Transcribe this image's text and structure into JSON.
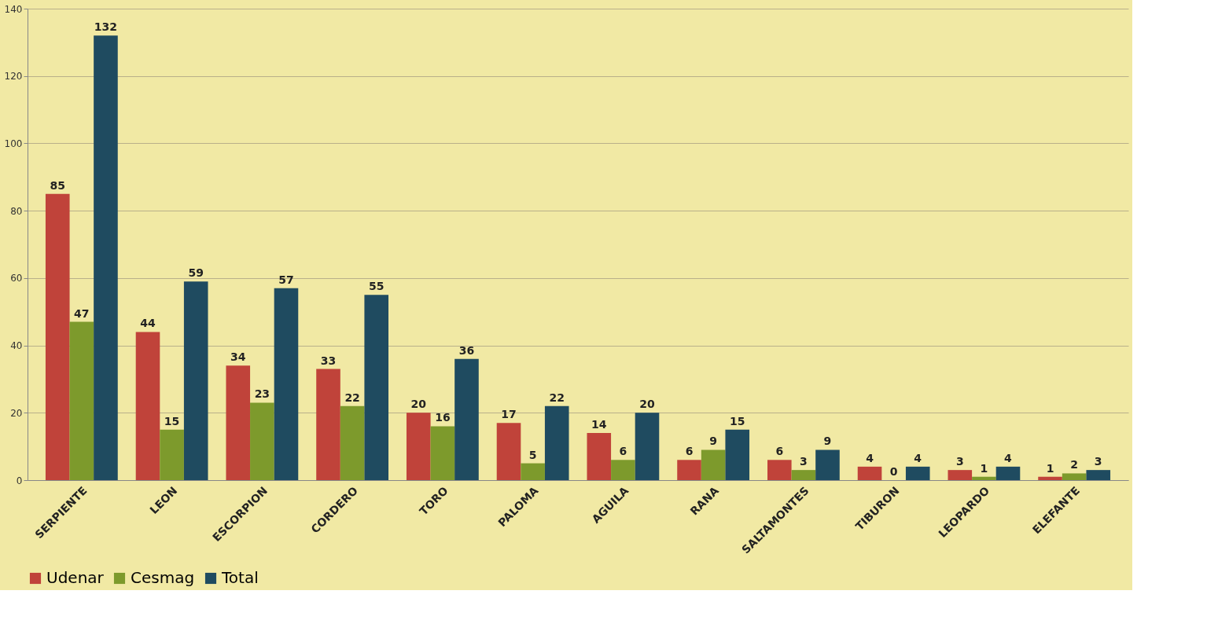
{
  "chart_data": {
    "type": "bar",
    "categories": [
      "SERPIENTE",
      "LEON",
      "ESCORPION",
      "CORDERO",
      "TORO",
      "PALOMA",
      "AGUILA",
      "RANA",
      "SALTAMONTES",
      "TIBURON",
      "LEOPARDO",
      "ELEFANTE"
    ],
    "series": [
      {
        "name": "Udenar",
        "color": "#c0433a",
        "values": [
          85,
          44,
          34,
          33,
          20,
          17,
          14,
          6,
          6,
          4,
          3,
          1
        ]
      },
      {
        "name": "Cesmag",
        "color": "#7d9a2c",
        "values": [
          47,
          15,
          23,
          22,
          16,
          5,
          6,
          9,
          3,
          0,
          1,
          2
        ]
      },
      {
        "name": "Total",
        "color": "#1f4b60",
        "values": [
          132,
          59,
          57,
          55,
          36,
          22,
          20,
          15,
          9,
          4,
          4,
          3
        ]
      }
    ],
    "ylim": [
      0,
      140
    ],
    "yticks": [
      0,
      20,
      40,
      60,
      80,
      100,
      120,
      140
    ],
    "grid": "y",
    "legend": "bottom",
    "data_labels": true
  }
}
